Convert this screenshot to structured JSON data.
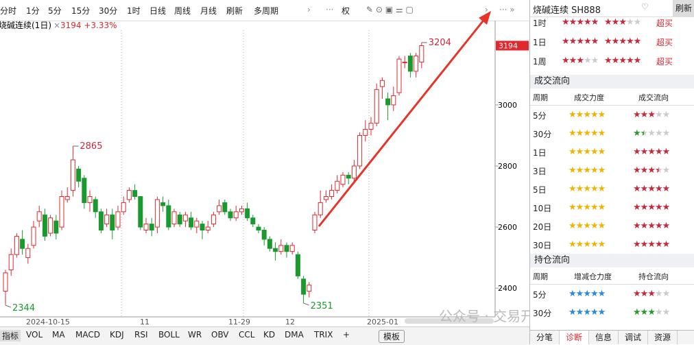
{
  "toolbar": {
    "buttons": [
      "分时",
      "1分",
      "5分",
      "15分",
      "30分",
      "1时",
      "日线",
      "周线",
      "月线",
      "刷新",
      "多周期"
    ],
    "right": "权"
  },
  "chart_data": {
    "type": "candlestick",
    "title": "烧碱连续(1日)",
    "quote": "3194 +3.33%",
    "current": 3194,
    "ylim": [
      2306,
      3276
    ],
    "yticks": [
      2400,
      2600,
      2800,
      3000
    ],
    "x_labels": [
      "2024-10-15",
      "11",
      "11-29",
      "12",
      "2025-01"
    ],
    "extreme_labels": [
      2344,
      2865,
      2351,
      3204
    ],
    "candles": [
      [
        2390,
        2450,
        2460,
        2344
      ],
      [
        2460,
        2510,
        2530,
        2440
      ],
      [
        2510,
        2570,
        2580,
        2500
      ],
      [
        2560,
        2530,
        2590,
        2510
      ],
      [
        2500,
        2530,
        2545,
        2480
      ],
      [
        2540,
        2600,
        2620,
        2530
      ],
      [
        2620,
        2650,
        2670,
        2600
      ],
      [
        2640,
        2570,
        2660,
        2555
      ],
      [
        2580,
        2630,
        2640,
        2570
      ],
      [
        2620,
        2580,
        2640,
        2560
      ],
      [
        2600,
        2700,
        2720,
        2590
      ],
      [
        2690,
        2700,
        2730,
        2680
      ],
      [
        2720,
        2820,
        2865,
        2700
      ],
      [
        2790,
        2750,
        2800,
        2730
      ],
      [
        2760,
        2680,
        2770,
        2660
      ],
      [
        2680,
        2700,
        2720,
        2650
      ],
      [
        2690,
        2650,
        2700,
        2630
      ],
      [
        2650,
        2590,
        2660,
        2580
      ],
      [
        2610,
        2640,
        2660,
        2600
      ],
      [
        2640,
        2590,
        2660,
        2560
      ],
      [
        2600,
        2650,
        2670,
        2590
      ],
      [
        2650,
        2680,
        2700,
        2640
      ],
      [
        2690,
        2720,
        2730,
        2680
      ],
      [
        2720,
        2700,
        2740,
        2690
      ],
      [
        2700,
        2600,
        2700,
        2590
      ],
      [
        2590,
        2610,
        2630,
        2580
      ],
      [
        2610,
        2590,
        2630,
        2570
      ],
      [
        2600,
        2690,
        2700,
        2580
      ],
      [
        2680,
        2670,
        2700,
        2650
      ],
      [
        2670,
        2600,
        2690,
        2590
      ],
      [
        2610,
        2650,
        2660,
        2600
      ],
      [
        2640,
        2610,
        2650,
        2600
      ],
      [
        2620,
        2640,
        2650,
        2600
      ],
      [
        2630,
        2600,
        2650,
        2590
      ],
      [
        2600,
        2620,
        2630,
        2580
      ],
      [
        2610,
        2590,
        2620,
        2560
      ],
      [
        2590,
        2600,
        2620,
        2580
      ],
      [
        2610,
        2640,
        2650,
        2600
      ],
      [
        2650,
        2670,
        2690,
        2640
      ],
      [
        2680,
        2650,
        2690,
        2640
      ],
      [
        2650,
        2630,
        2660,
        2620
      ],
      [
        2630,
        2650,
        2670,
        2620
      ],
      [
        2650,
        2660,
        2670,
        2640
      ],
      [
        2660,
        2630,
        2680,
        2620
      ],
      [
        2630,
        2610,
        2640,
        2600
      ],
      [
        2600,
        2590,
        2610,
        2580
      ],
      [
        2590,
        2560,
        2600,
        2540
      ],
      [
        2560,
        2530,
        2570,
        2520
      ],
      [
        2530,
        2520,
        2550,
        2490
      ],
      [
        2520,
        2540,
        2560,
        2510
      ],
      [
        2540,
        2520,
        2550,
        2500
      ],
      [
        2520,
        2540,
        2550,
        2510
      ],
      [
        2510,
        2440,
        2520,
        2430
      ],
      [
        2430,
        2380,
        2440,
        2351
      ],
      [
        2390,
        2410,
        2420,
        2370
      ],
      [
        2590,
        2640,
        2650,
        2580
      ],
      [
        2640,
        2680,
        2720,
        2630
      ],
      [
        2690,
        2700,
        2720,
        2680
      ],
      [
        2700,
        2720,
        2740,
        2690
      ],
      [
        2720,
        2750,
        2770,
        2710
      ],
      [
        2740,
        2770,
        2780,
        2730
      ],
      [
        2770,
        2760,
        2780,
        2740
      ],
      [
        2760,
        2800,
        2820,
        2750
      ],
      [
        2800,
        2900,
        2910,
        2790
      ],
      [
        2900,
        2920,
        2950,
        2880
      ],
      [
        2920,
        2940,
        2960,
        2900
      ],
      [
        2940,
        3050,
        3070,
        2930
      ],
      [
        3060,
        3080,
        3090,
        3020
      ],
      [
        3020,
        3000,
        3040,
        2950
      ],
      [
        3000,
        3030,
        3060,
        2980
      ],
      [
        3040,
        3150,
        3160,
        3030
      ],
      [
        3140,
        3140,
        3160,
        3120
      ],
      [
        3160,
        3110,
        3170,
        3090
      ],
      [
        3110,
        3160,
        3170,
        3090
      ],
      [
        3140,
        3194,
        3204,
        3120
      ]
    ],
    "up_color": "#e0282e",
    "down_color": "#1a9a2e"
  },
  "indicators": {
    "label": "指标",
    "items": [
      "VOL",
      "MA",
      "MACD",
      "KDJ",
      "RSI",
      "BOLL",
      "WR",
      "OBV",
      "CCL",
      "KD",
      "DMA",
      "TRIX",
      "+"
    ],
    "template": "模板"
  },
  "watermark": "公众号 · 交易开拓者TB",
  "panel": {
    "title": "烧碱连续 SH888",
    "refresh": "刷新",
    "summary": [
      {
        "period": "1时",
        "a": 5,
        "b": 3,
        "note": "超买"
      },
      {
        "period": "1日",
        "a": 5,
        "b": 5,
        "note": "超买"
      },
      {
        "period": "1周",
        "a": 3,
        "b": 5,
        "note": "超买"
      }
    ],
    "volume": {
      "title": "成交流向",
      "headers": [
        "周期",
        "成交力度",
        "成交流向"
      ],
      "rows": [
        {
          "period": "5分",
          "a": 5,
          "b": 3,
          "b_color": "#c8283c"
        },
        {
          "period": "30分",
          "a": 5,
          "b": 1.5,
          "b_color": "#2a9a2a"
        },
        {
          "period": "1日",
          "a": 5,
          "b": 5,
          "b_color": "#c8283c"
        },
        {
          "period": "3日",
          "a": 5,
          "b": 3.5,
          "b_color": "#c8283c"
        },
        {
          "period": "5日",
          "a": 5,
          "b": 5,
          "b_color": "#c8283c"
        },
        {
          "period": "10日",
          "a": 5,
          "b": 5,
          "b_color": "#c8283c"
        },
        {
          "period": "20日",
          "a": 5,
          "b": 5,
          "b_color": "#c8283c"
        },
        {
          "period": "30日",
          "a": 5,
          "b": 5,
          "b_color": "#c8283c"
        }
      ]
    },
    "position": {
      "title": "持仓流向",
      "headers": [
        "周期",
        "增减仓力度",
        "持仓流向"
      ],
      "rows": [
        {
          "period": "5分",
          "a": 5,
          "b": 3,
          "b_color": "#c8283c"
        },
        {
          "period": "30分",
          "a": 5,
          "b": 3,
          "b_color": "#2a9a2a"
        }
      ]
    },
    "tabs": [
      "分笔",
      "诊断",
      "信息",
      "调试",
      "资源"
    ]
  }
}
